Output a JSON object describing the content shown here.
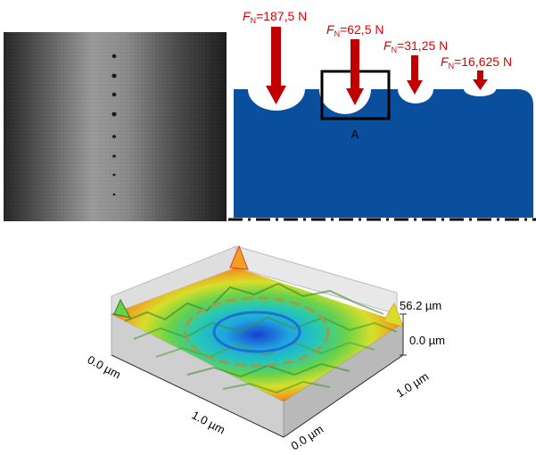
{
  "force_labels": [
    {
      "symbol": "F",
      "subscript": "N",
      "value": "=187,5 N"
    },
    {
      "symbol": "F",
      "subscript": "N",
      "value": "=62,5 N"
    },
    {
      "symbol": "F",
      "subscript": "N",
      "value": "=31,25 N"
    },
    {
      "symbol": "F",
      "subscript": "N",
      "value": "=16,625 N"
    }
  ],
  "detail_label": "A",
  "surface_plot": {
    "z_max_label": "56.2 µm",
    "z_min_label": "0.0 µm",
    "x_axis_ticks": [
      "0.0 µm",
      "1.0 µm"
    ],
    "y_axis_ticks": [
      "0.0 µm",
      "1.0 µm"
    ]
  },
  "colors": {
    "force_arrow": "#c00000",
    "label_red": "#e00000",
    "cross_section_fill": "#0a4f9e",
    "detail_box": "#000000"
  }
}
